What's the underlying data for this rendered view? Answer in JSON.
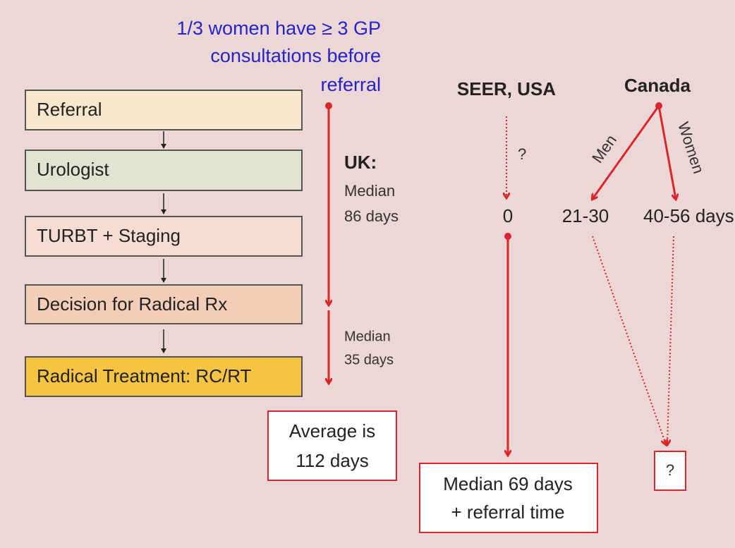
{
  "note": {
    "lines": [
      "1/3 women have ≥ 3 GP",
      "consultations before",
      "referral"
    ]
  },
  "pathway": {
    "steps": [
      "Referral",
      "Urologist",
      "TURBT + Staging",
      "Decision for Radical Rx",
      "Radical Treatment: RC/RT"
    ]
  },
  "uk": {
    "label": "UK:",
    "first_interval": [
      "Median",
      "86 days"
    ],
    "second_interval": [
      "Median",
      "35 days"
    ],
    "total": [
      "Average is",
      "112 days"
    ]
  },
  "seer": {
    "label": "SEER, USA",
    "unknown": "?",
    "referral_time": "0",
    "total": [
      "Median 69 days",
      "+ referral time"
    ]
  },
  "canada": {
    "label": "Canada",
    "men_label": "Men",
    "women_label": "Women",
    "men_time": "21-30",
    "women_time": "40-56 days",
    "total": "?"
  }
}
